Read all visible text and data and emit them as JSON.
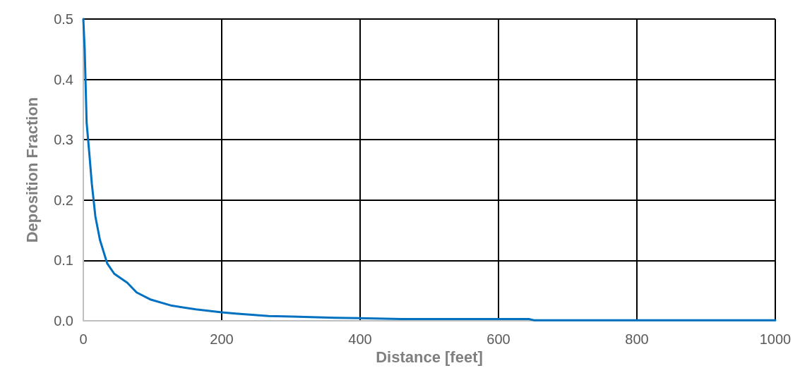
{
  "chart_data": {
    "type": "line",
    "xlabel": "Distance [feet]",
    "ylabel": "Deposition Fraction",
    "x": [
      0,
      2,
      4.8,
      8.9,
      12.3,
      17.4,
      24,
      34.5,
      44.7,
      63.5,
      77,
      97.7,
      128,
      162.5,
      200,
      220,
      268,
      302,
      364,
      460,
      644,
      651,
      1000
    ],
    "series": [
      {
        "color": "#0070c0",
        "values": [
          0.5,
          0.449,
          0.328,
          0.274,
          0.227,
          0.173,
          0.134,
          0.095,
          0.078,
          0.063,
          0.047,
          0.035,
          0.025,
          0.019,
          0.014,
          0.012,
          0.008,
          0.007,
          0.005,
          0.003,
          0.003,
          0.001,
          0.001
        ]
      }
    ],
    "xlim": [
      0,
      1000
    ],
    "xticks": [
      0,
      200,
      400,
      600,
      800,
      1000
    ],
    "ylim": [
      0,
      0.5
    ],
    "yticks": [
      {
        "value": 0,
        "label": "0.0"
      },
      0.1,
      0.2,
      0.3,
      0.4,
      0.5
    ],
    "grid": true,
    "marker": "none",
    "line_style": "solid"
  }
}
